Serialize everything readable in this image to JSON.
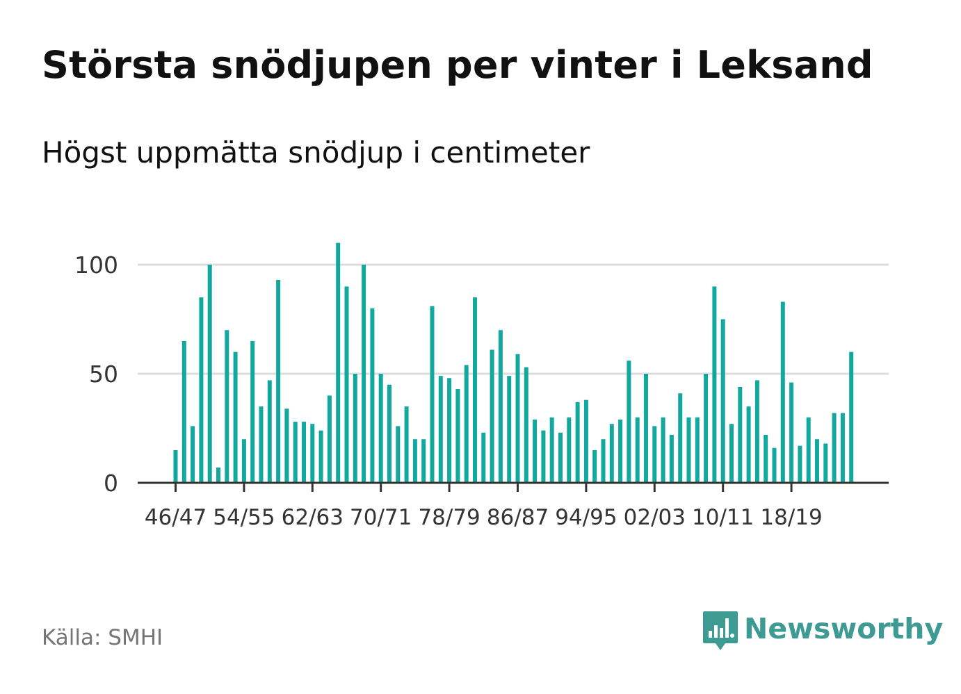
{
  "header": {
    "title": "Största snödjupen per vinter i Leksand",
    "subtitle": "Högst uppmätta snödjup i centimeter"
  },
  "footer": {
    "source": "Källa: SMHI",
    "brand": "Newsworthy",
    "brand_icon": "bar-chart-speech-bubble-icon"
  },
  "colors": {
    "bar": "#13a89e",
    "grid": "#dcdcdc",
    "axis": "#333333",
    "brand": "#3d9b93"
  },
  "chart_data": {
    "type": "bar",
    "title": "Största snödjupen per vinter i Leksand",
    "subtitle": "Högst uppmätta snödjup i centimeter",
    "ylim": [
      0,
      120
    ],
    "yticks": [
      0,
      50,
      100
    ],
    "grid": true,
    "xtick_labels": [
      "46/47",
      "54/55",
      "62/63",
      "70/71",
      "78/79",
      "86/87",
      "94/95",
      "02/03",
      "10/11",
      "18/19"
    ],
    "xtick_every": 8,
    "values": [
      15,
      65,
      26,
      85,
      100,
      7,
      70,
      60,
      20,
      65,
      35,
      47,
      93,
      34,
      28,
      28,
      27,
      24,
      40,
      110,
      90,
      50,
      100,
      80,
      50,
      45,
      26,
      35,
      20,
      20,
      81,
      49,
      48,
      43,
      54,
      85,
      23,
      61,
      70,
      49,
      59,
      53,
      29,
      24,
      30,
      23,
      30,
      37,
      38,
      15,
      20,
      27,
      29,
      56,
      30,
      50,
      26,
      30,
      22,
      41,
      30,
      30,
      50,
      90,
      75,
      27,
      44,
      35,
      47,
      22,
      16,
      83,
      46,
      17,
      30,
      20,
      18,
      32,
      32,
      60
    ]
  }
}
